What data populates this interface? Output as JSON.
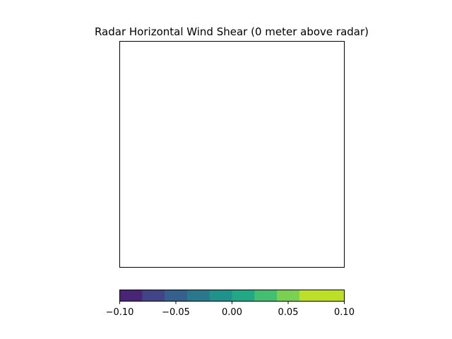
{
  "chart_data": {
    "type": "heatmap",
    "title": "Radar Horizontal Wind Shear (0 meter above radar)",
    "xlabel": "",
    "ylabel": "",
    "values": [],
    "axes_ticks_visible": false,
    "grid": false,
    "colorbar": {
      "orientation": "horizontal",
      "placement": "bottom",
      "colormap": "viridis",
      "range": [
        -0.1,
        0.1
      ],
      "bins": 10,
      "ticks": [
        {
          "value": -0.1,
          "label": "−0.10"
        },
        {
          "value": -0.05,
          "label": "−0.05"
        },
        {
          "value": 0.0,
          "label": "0.00"
        },
        {
          "value": 0.05,
          "label": "0.05"
        },
        {
          "value": 0.1,
          "label": "0.10"
        }
      ],
      "colors": [
        "#482575",
        "#414487",
        "#35608d",
        "#2a788e",
        "#21918c",
        "#22a884",
        "#43bf71",
        "#7ad151",
        "#bcdf27",
        "#bddf26"
      ]
    }
  }
}
